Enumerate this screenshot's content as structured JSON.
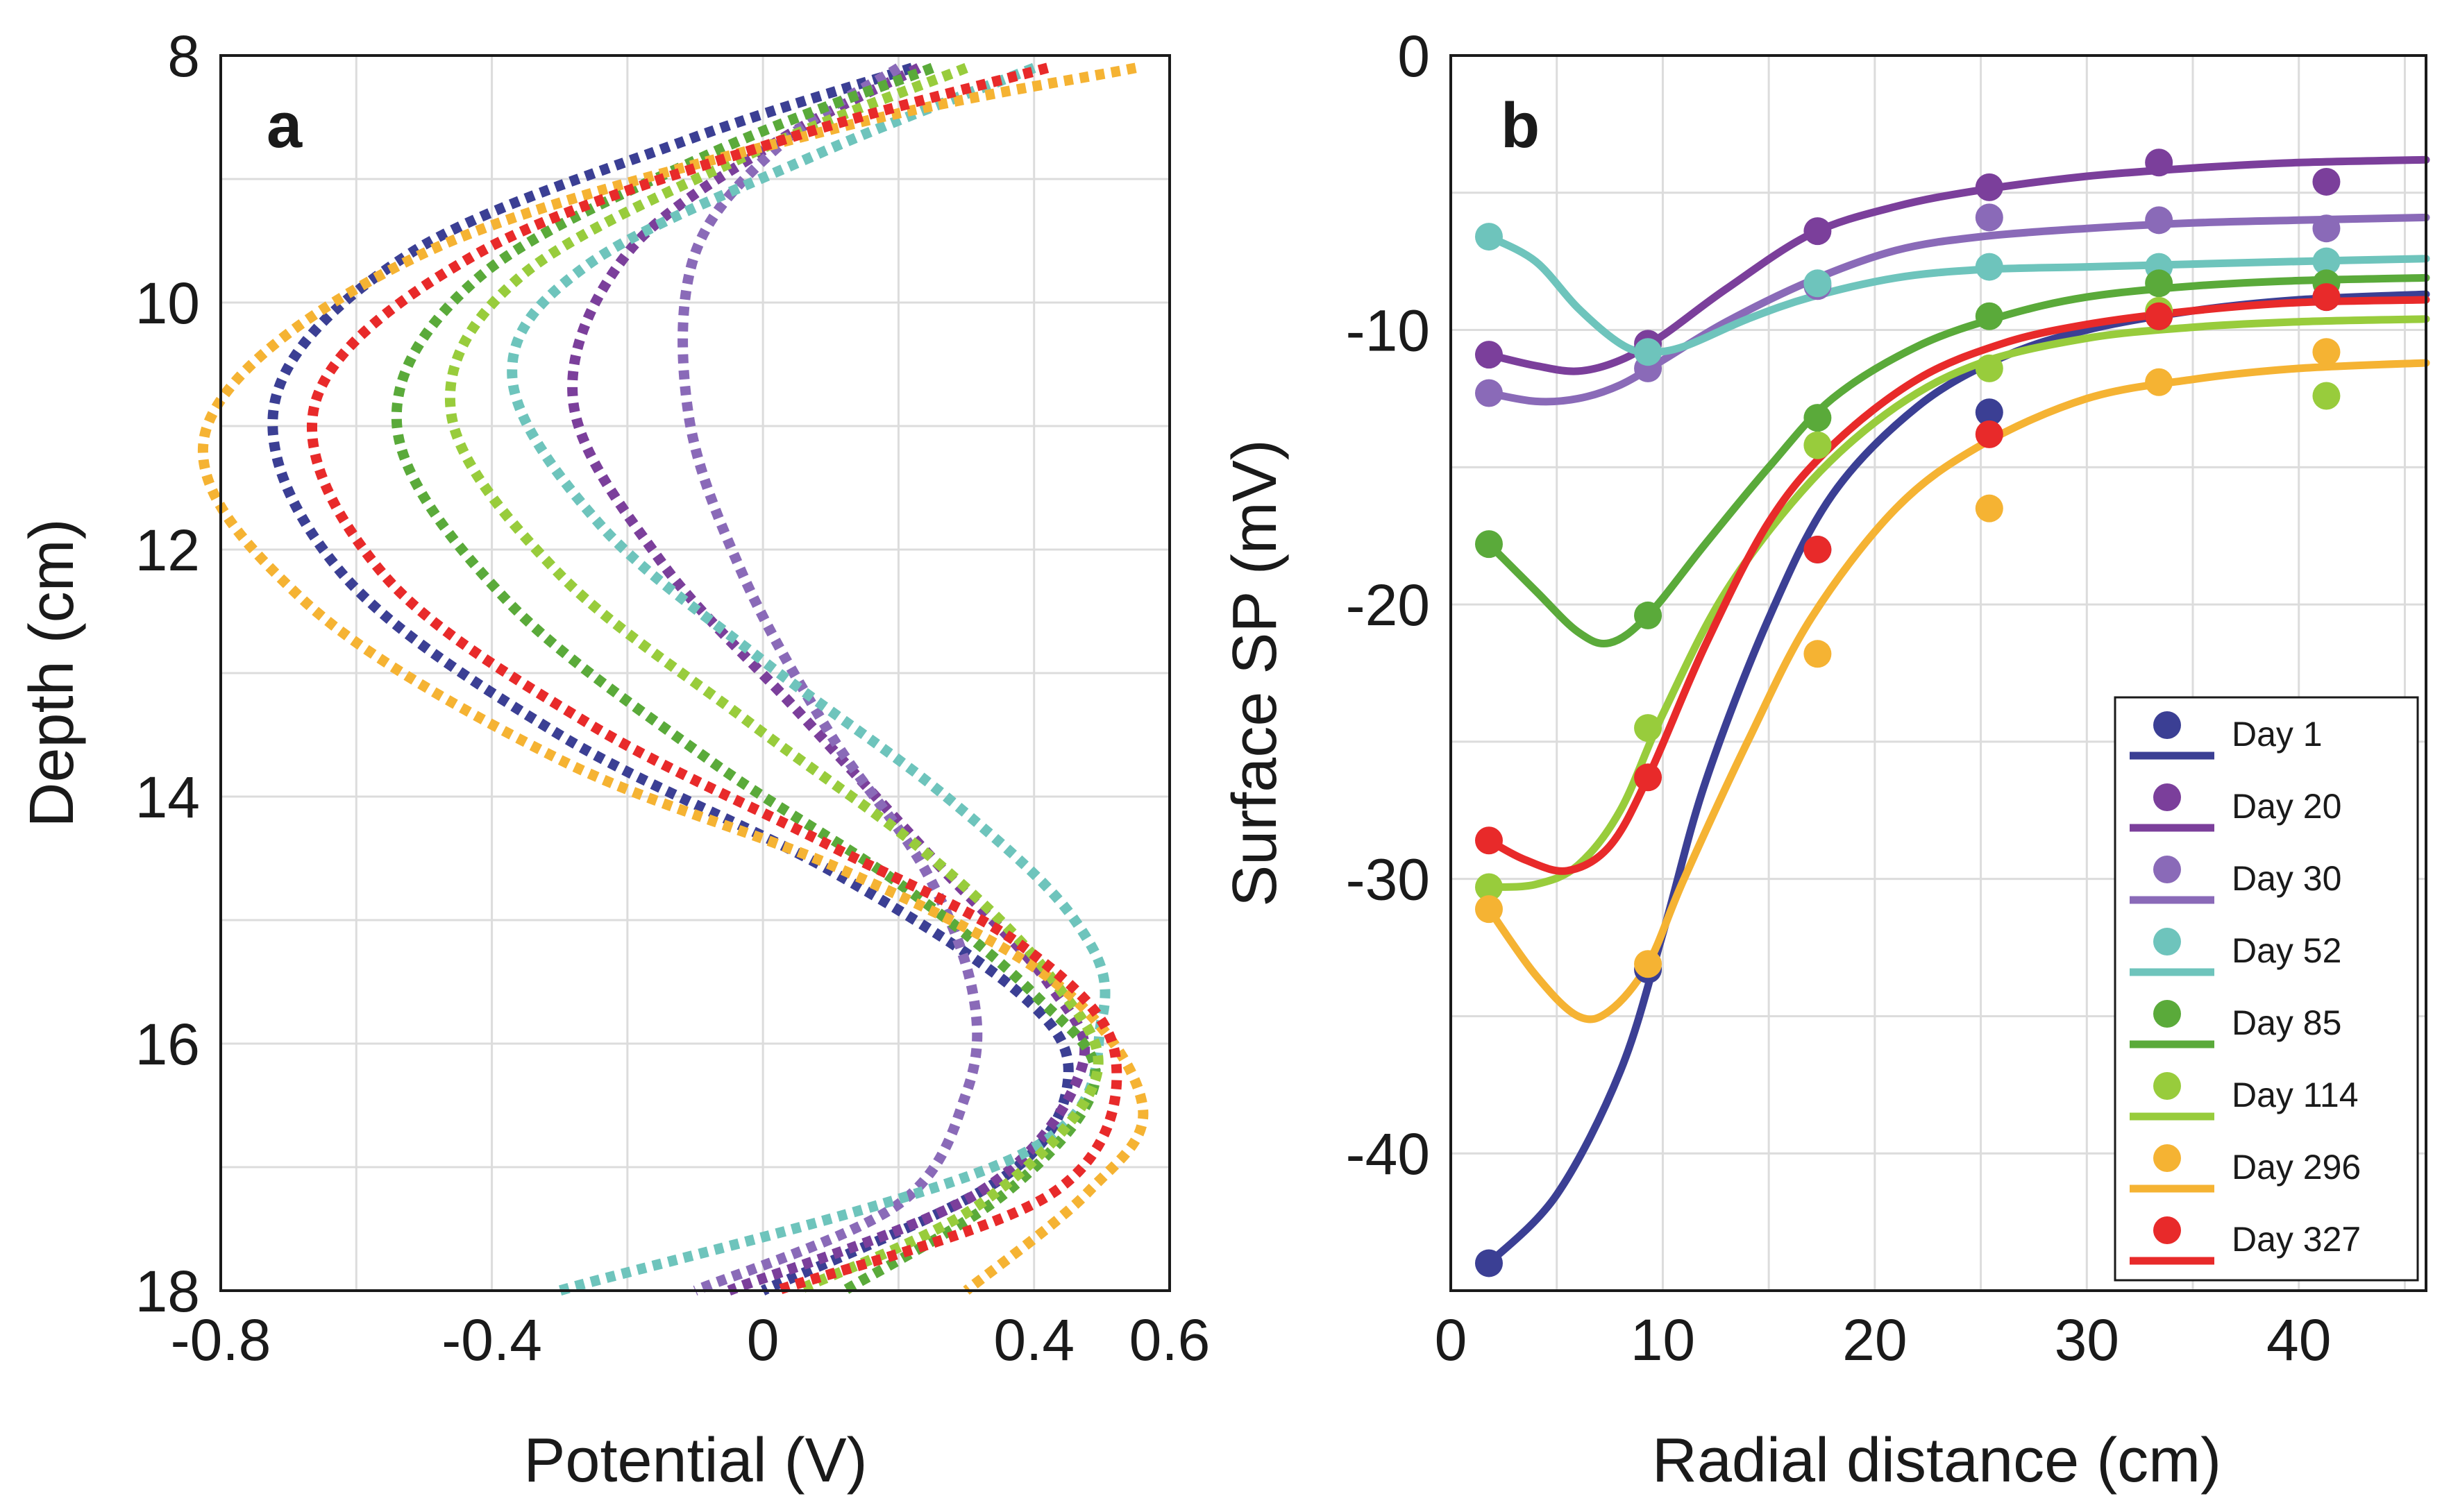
{
  "chart_data": [
    {
      "panel": "a",
      "type": "line",
      "title": "",
      "xlabel": "Potential (V)",
      "ylabel": "Depth (cm)",
      "xlim": [
        -0.8,
        0.6
      ],
      "ylim": [
        8,
        18
      ],
      "y_inverted": true,
      "grid": true,
      "xticks": [
        -0.8,
        -0.4,
        0,
        0.4,
        0.6
      ],
      "xtick_labels": [
        "-0.8",
        "-0.4",
        "0",
        "0.4",
        "0.6"
      ],
      "yticks": [
        8,
        10,
        12,
        14,
        16,
        18
      ],
      "ytick_labels": [
        "8",
        "10",
        "12",
        "14",
        "16",
        "18"
      ],
      "line_style": "dotted",
      "series": [
        {
          "name": "Day 1",
          "color": "#3b3f94",
          "points": [
            [
              0.22,
              8.1
            ],
            [
              -0.12,
              8.7
            ],
            [
              -0.52,
              9.6
            ],
            [
              -0.72,
              10.8
            ],
            [
              -0.62,
              12.2
            ],
            [
              -0.3,
              13.5
            ],
            [
              0.1,
              14.6
            ],
            [
              0.38,
              15.6
            ],
            [
              0.45,
              16.3
            ],
            [
              0.35,
              17.1
            ],
            [
              0.0,
              18.0
            ]
          ]
        },
        {
          "name": "Day 20",
          "color": "#7b3f9b",
          "points": [
            [
              0.23,
              8.1
            ],
            [
              0.02,
              8.7
            ],
            [
              -0.2,
              9.6
            ],
            [
              -0.28,
              10.8
            ],
            [
              -0.15,
              12.1
            ],
            [
              0.05,
              13.3
            ],
            [
              0.25,
              14.5
            ],
            [
              0.42,
              15.5
            ],
            [
              0.47,
              16.2
            ],
            [
              0.32,
              17.2
            ],
            [
              -0.05,
              18.0
            ]
          ]
        },
        {
          "name": "Day 30",
          "color": "#8a6ab8",
          "points": [
            [
              0.2,
              8.1
            ],
            [
              0.03,
              8.7
            ],
            [
              -0.1,
              9.6
            ],
            [
              -0.11,
              10.9
            ],
            [
              -0.03,
              12.2
            ],
            [
              0.1,
              13.5
            ],
            [
              0.24,
              14.6
            ],
            [
              0.31,
              15.6
            ],
            [
              0.3,
              16.4
            ],
            [
              0.2,
              17.3
            ],
            [
              -0.1,
              18.0
            ]
          ]
        },
        {
          "name": "Day 52",
          "color": "#6ec4bc",
          "points": [
            [
              0.4,
              8.1
            ],
            [
              0.08,
              8.8
            ],
            [
              -0.26,
              9.7
            ],
            [
              -0.37,
              10.6
            ],
            [
              -0.24,
              11.8
            ],
            [
              0.0,
              12.9
            ],
            [
              0.27,
              14.0
            ],
            [
              0.46,
              15.0
            ],
            [
              0.5,
              15.8
            ],
            [
              0.38,
              16.9
            ],
            [
              -0.3,
              18.0
            ]
          ]
        },
        {
          "name": "Day 85",
          "color": "#5aaa3a",
          "points": [
            [
              0.25,
              8.1
            ],
            [
              -0.08,
              8.8
            ],
            [
              -0.42,
              9.8
            ],
            [
              -0.54,
              11.0
            ],
            [
              -0.38,
              12.4
            ],
            [
              -0.08,
              13.7
            ],
            [
              0.2,
              14.7
            ],
            [
              0.4,
              15.6
            ],
            [
              0.49,
              16.3
            ],
            [
              0.36,
              17.2
            ],
            [
              0.12,
              18.0
            ]
          ]
        },
        {
          "name": "Day 114",
          "color": "#98cc3c",
          "points": [
            [
              0.3,
              8.1
            ],
            [
              -0.02,
              8.8
            ],
            [
              -0.36,
              9.8
            ],
            [
              -0.46,
              10.9
            ],
            [
              -0.3,
              12.2
            ],
            [
              -0.02,
              13.4
            ],
            [
              0.25,
              14.5
            ],
            [
              0.43,
              15.5
            ],
            [
              0.49,
              16.3
            ],
            [
              0.32,
              17.3
            ],
            [
              0.05,
              18.0
            ]
          ]
        },
        {
          "name": "Day 296",
          "color": "#f5b333",
          "points": [
            [
              0.55,
              8.1
            ],
            [
              0.1,
              8.6
            ],
            [
              -0.5,
              9.6
            ],
            [
              -0.82,
              11.0
            ],
            [
              -0.68,
              12.4
            ],
            [
              -0.3,
              13.7
            ],
            [
              0.12,
              14.6
            ],
            [
              0.43,
              15.5
            ],
            [
              0.56,
              16.5
            ],
            [
              0.48,
              17.2
            ],
            [
              0.3,
              18.0
            ]
          ]
        },
        {
          "name": "Day 327",
          "color": "#e82a2a",
          "points": [
            [
              0.42,
              8.1
            ],
            [
              0.02,
              8.7
            ],
            [
              -0.42,
              9.6
            ],
            [
              -0.66,
              10.8
            ],
            [
              -0.56,
              12.2
            ],
            [
              -0.26,
              13.4
            ],
            [
              0.1,
              14.4
            ],
            [
              0.38,
              15.2
            ],
            [
              0.52,
              16.1
            ],
            [
              0.43,
              17.2
            ],
            [
              0.02,
              18.0
            ]
          ]
        }
      ]
    },
    {
      "panel": "b",
      "type": "scatter",
      "title": "",
      "xlabel": "Radial distance (cm)",
      "ylabel": "Surface SP (mV)",
      "xlim": [
        0,
        46
      ],
      "ylim": [
        -45,
        0
      ],
      "grid": true,
      "xticks": [
        0,
        10,
        20,
        30,
        40
      ],
      "xtick_labels": [
        "0",
        "10",
        "20",
        "30",
        "40"
      ],
      "yticks": [
        0,
        -10,
        -20,
        -30,
        -40
      ],
      "ytick_labels": [
        "0",
        "-10",
        "-20",
        "-30",
        "-40"
      ],
      "legend_position": "bottom-right",
      "point_x": [
        1.8,
        9.3,
        17.3,
        25.4,
        33.4,
        41.3
      ],
      "series": [
        {
          "name": "Day 1",
          "color": "#3b3f94",
          "points": [
            -44.0,
            -33.3,
            -18.0,
            -13.0,
            -9.5,
            -8.8
          ],
          "fit": [
            [
              1.8,
              -44.0
            ],
            [
              5,
              -41.5
            ],
            [
              8,
              -37.0
            ],
            [
              10,
              -32.0
            ],
            [
              12,
              -26.5
            ],
            [
              15,
              -20.5
            ],
            [
              18,
              -16.0
            ],
            [
              22,
              -12.8
            ],
            [
              26,
              -11.0
            ],
            [
              30,
              -10.0
            ],
            [
              35,
              -9.3
            ],
            [
              40,
              -8.9
            ],
            [
              46,
              -8.7
            ]
          ]
        },
        {
          "name": "Day 20",
          "color": "#7b3f9b",
          "points": [
            -10.9,
            -10.5,
            -6.4,
            -4.8,
            -3.9,
            -4.6
          ],
          "fit": [
            [
              1.8,
              -10.9
            ],
            [
              4,
              -11.3
            ],
            [
              6,
              -11.5
            ],
            [
              8,
              -11.1
            ],
            [
              10,
              -10.2
            ],
            [
              13,
              -8.5
            ],
            [
              17,
              -6.5
            ],
            [
              21,
              -5.5
            ],
            [
              25,
              -4.9
            ],
            [
              30,
              -4.4
            ],
            [
              35,
              -4.1
            ],
            [
              40,
              -3.9
            ],
            [
              46,
              -3.8
            ]
          ]
        },
        {
          "name": "Day 30",
          "color": "#8a6ab8",
          "points": [
            -12.3,
            -11.4,
            -8.4,
            -5.9,
            -6.0,
            -6.3
          ],
          "fit": [
            [
              1.8,
              -12.3
            ],
            [
              4,
              -12.6
            ],
            [
              6,
              -12.5
            ],
            [
              8,
              -12.0
            ],
            [
              10,
              -11.1
            ],
            [
              13,
              -9.7
            ],
            [
              17,
              -8.2
            ],
            [
              21,
              -7.1
            ],
            [
              25,
              -6.6
            ],
            [
              30,
              -6.3
            ],
            [
              35,
              -6.1
            ],
            [
              40,
              -6.0
            ],
            [
              46,
              -5.9
            ]
          ]
        },
        {
          "name": "Day 52",
          "color": "#6ec4bc",
          "points": [
            -6.6,
            -10.8,
            -8.3,
            -7.7,
            -7.7,
            -7.5
          ],
          "fit": [
            [
              1.8,
              -6.6
            ],
            [
              4,
              -7.5
            ],
            [
              6,
              -9.2
            ],
            [
              8,
              -10.5
            ],
            [
              9.3,
              -10.8
            ],
            [
              11,
              -10.6
            ],
            [
              14,
              -9.6
            ],
            [
              17,
              -8.8
            ],
            [
              21,
              -8.1
            ],
            [
              25,
              -7.8
            ],
            [
              30,
              -7.7
            ],
            [
              35,
              -7.6
            ],
            [
              40,
              -7.5
            ],
            [
              46,
              -7.4
            ]
          ]
        },
        {
          "name": "Day 85",
          "color": "#5aaa3a",
          "points": [
            -17.8,
            -20.4,
            -13.2,
            -9.5,
            -8.3,
            -8.3
          ],
          "fit": [
            [
              1.8,
              -17.8
            ],
            [
              4,
              -19.5
            ],
            [
              6,
              -21.0
            ],
            [
              7.5,
              -21.4
            ],
            [
              9.3,
              -20.4
            ],
            [
              12,
              -17.8
            ],
            [
              15,
              -15.0
            ],
            [
              18,
              -12.5
            ],
            [
              22,
              -10.6
            ],
            [
              26,
              -9.5
            ],
            [
              30,
              -8.8
            ],
            [
              35,
              -8.4
            ],
            [
              40,
              -8.2
            ],
            [
              46,
              -8.1
            ]
          ]
        },
        {
          "name": "Day 114",
          "color": "#98cc3c",
          "points": [
            -30.3,
            -24.5,
            -14.2,
            -11.4,
            -9.3,
            -12.4
          ],
          "fit": [
            [
              1.8,
              -30.3
            ],
            [
              4,
              -30.2
            ],
            [
              6,
              -29.5
            ],
            [
              8,
              -27.5
            ],
            [
              10,
              -24.0
            ],
            [
              13,
              -19.5
            ],
            [
              17,
              -15.5
            ],
            [
              21,
              -12.8
            ],
            [
              25,
              -11.2
            ],
            [
              30,
              -10.3
            ],
            [
              35,
              -9.9
            ],
            [
              40,
              -9.7
            ],
            [
              46,
              -9.6
            ]
          ]
        },
        {
          "name": "Day 296",
          "color": "#f5b333",
          "points": [
            -31.1,
            -33.1,
            -21.8,
            -16.5,
            -11.9,
            -10.8
          ],
          "fit": [
            [
              1.8,
              -31.1
            ],
            [
              4,
              -33.5
            ],
            [
              6,
              -35.0
            ],
            [
              7.5,
              -34.8
            ],
            [
              9.3,
              -33.1
            ],
            [
              11,
              -30.0
            ],
            [
              14,
              -25.0
            ],
            [
              17,
              -20.5
            ],
            [
              21,
              -16.5
            ],
            [
              25,
              -14.2
            ],
            [
              30,
              -12.5
            ],
            [
              35,
              -11.8
            ],
            [
              40,
              -11.4
            ],
            [
              46,
              -11.2
            ]
          ]
        },
        {
          "name": "Day 327",
          "color": "#e82a2a",
          "points": [
            -28.6,
            -26.3,
            -18.0,
            -13.8,
            -9.5,
            -8.8
          ],
          "fit": [
            [
              1.8,
              -28.6
            ],
            [
              3.5,
              -29.3
            ],
            [
              5.5,
              -29.7
            ],
            [
              7.5,
              -28.8
            ],
            [
              9.3,
              -26.3
            ],
            [
              12,
              -21.5
            ],
            [
              15,
              -17.0
            ],
            [
              18,
              -14.2
            ],
            [
              22,
              -11.8
            ],
            [
              26,
              -10.5
            ],
            [
              30,
              -9.8
            ],
            [
              35,
              -9.3
            ],
            [
              40,
              -9.0
            ],
            [
              46,
              -8.9
            ]
          ]
        }
      ]
    }
  ]
}
